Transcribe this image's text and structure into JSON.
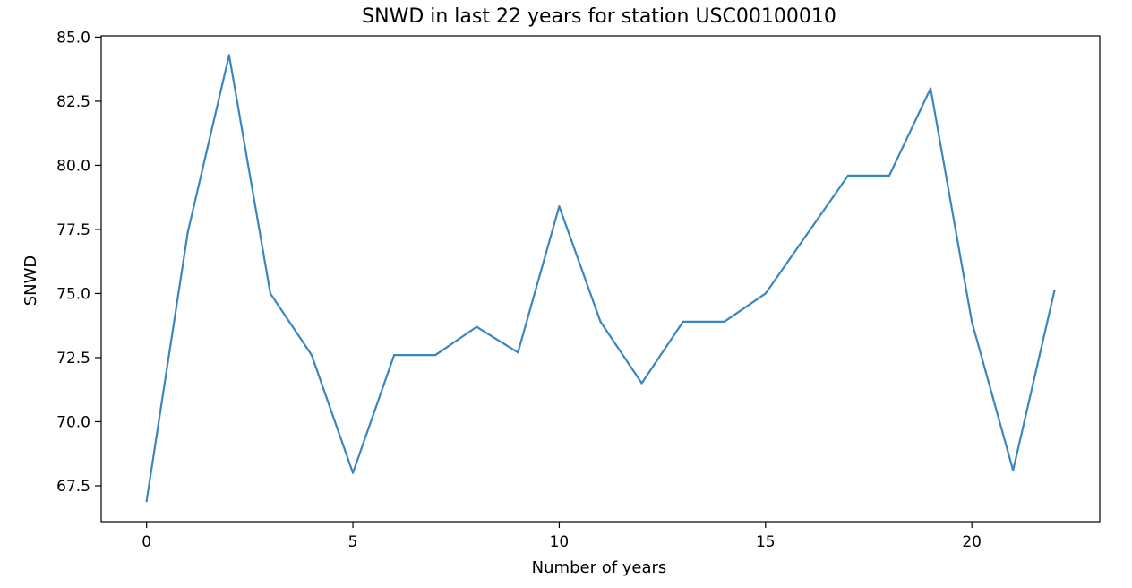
{
  "chart_data": {
    "type": "line",
    "title": "SNWD in last 22 years for station USC00100010",
    "xlabel": "Number of years",
    "ylabel": "SNWD",
    "xlim": [
      -1.1,
      23.1
    ],
    "ylim": [
      66.1,
      85.05
    ],
    "x_ticks": [
      0,
      5,
      10,
      15,
      20
    ],
    "y_ticks": [
      67.5,
      70.0,
      72.5,
      75.0,
      77.5,
      80.0,
      82.5,
      85.0
    ],
    "grid": false,
    "series": [
      {
        "color": "#3a87c0",
        "x": [
          0,
          1,
          2,
          3,
          4,
          5,
          6,
          7,
          8,
          9,
          10,
          11,
          12,
          13,
          14,
          15,
          16,
          17,
          18,
          19,
          20,
          21,
          22
        ],
        "y": [
          66.9,
          77.4,
          84.3,
          75.0,
          72.6,
          68.0,
          72.6,
          72.6,
          73.7,
          72.7,
          78.4,
          73.9,
          71.5,
          73.9,
          73.9,
          75.0,
          77.3,
          79.6,
          79.6,
          83.0,
          73.9,
          68.1,
          75.1
        ]
      }
    ]
  }
}
